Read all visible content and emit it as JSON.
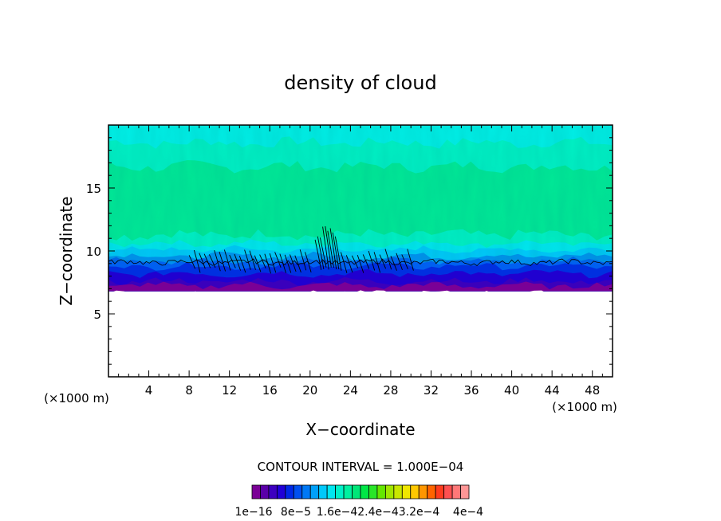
{
  "chart_data": {
    "type": "heatmap",
    "title": "density of cloud",
    "xlabel": "X−coordinate",
    "ylabel": "Z−coordinate",
    "x_unit_left": "(×1000 m)",
    "x_unit_right": "(×1000 m)",
    "xlim": [
      0,
      50
    ],
    "ylim": [
      0,
      20
    ],
    "xticks": [
      4,
      8,
      12,
      16,
      20,
      24,
      28,
      32,
      36,
      40,
      44,
      48
    ],
    "yticks": [
      5,
      10,
      15
    ],
    "cloud_base_z": 6.8,
    "contour_line_z": 9.1,
    "convective_tower": {
      "x_range": [
        20.5,
        22.5
      ],
      "top_z": 12.3
    },
    "contour_interval_text": "CONTOUR INTERVAL = 1.000E−04",
    "colorbar": {
      "colors": [
        "#7a0096",
        "#5a00a8",
        "#3c00c0",
        "#2000d8",
        "#0028e6",
        "#0050f0",
        "#0078f5",
        "#00a0fa",
        "#00c8fa",
        "#00e6f0",
        "#00f0c8",
        "#00f0a0",
        "#00e678",
        "#00e646",
        "#28e628",
        "#64e600",
        "#a0e600",
        "#c8e600",
        "#f0e600",
        "#ffc800",
        "#ff9600",
        "#ff6400",
        "#ff3c1e",
        "#ff5050",
        "#ff7878",
        "#ff9696"
      ],
      "tick_labels": [
        "1e−16",
        "8e−5",
        "1.6e−4",
        "2.4e−4",
        "3.2e−4",
        "4e−4"
      ],
      "tick_labels_display": [
        "1e−16",
        "8e−5",
        "1.6e−42.4e−43.2e−4",
        "4e−4"
      ]
    }
  }
}
